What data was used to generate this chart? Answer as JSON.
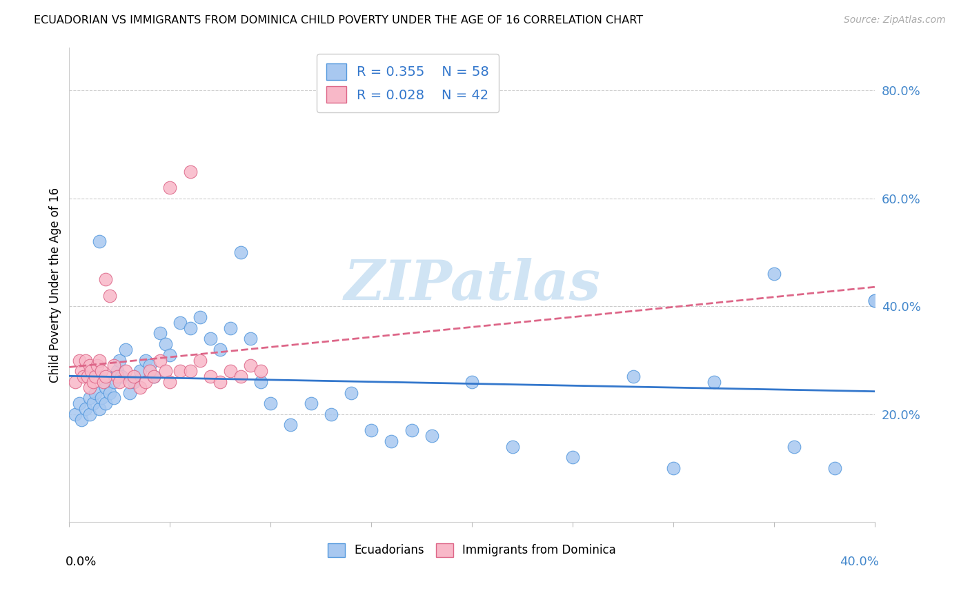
{
  "title": "ECUADORIAN VS IMMIGRANTS FROM DOMINICA CHILD POVERTY UNDER THE AGE OF 16 CORRELATION CHART",
  "source": "Source: ZipAtlas.com",
  "ylabel": "Child Poverty Under the Age of 16",
  "right_yticks": [
    "80.0%",
    "60.0%",
    "40.0%",
    "20.0%"
  ],
  "right_ytick_vals": [
    0.8,
    0.6,
    0.4,
    0.2
  ],
  "xlim": [
    0.0,
    0.4
  ],
  "ylim": [
    0.0,
    0.88
  ],
  "blue_R": "R = 0.355",
  "blue_N": "N = 58",
  "pink_R": "R = 0.028",
  "pink_N": "N = 42",
  "blue_color": "#a8c8f0",
  "pink_color": "#f8b8c8",
  "blue_edge_color": "#5599dd",
  "pink_edge_color": "#dd6688",
  "blue_line_color": "#3377cc",
  "pink_line_color": "#dd6688",
  "legend1_label": "Ecuadorians",
  "legend2_label": "Immigrants from Dominica",
  "watermark": "ZIPatlas",
  "blue_x": [
    0.003,
    0.005,
    0.006,
    0.008,
    0.01,
    0.01,
    0.012,
    0.013,
    0.015,
    0.016,
    0.018,
    0.018,
    0.02,
    0.022,
    0.022,
    0.024,
    0.025,
    0.026,
    0.028,
    0.03,
    0.032,
    0.035,
    0.038,
    0.04,
    0.042,
    0.045,
    0.048,
    0.05,
    0.055,
    0.06,
    0.065,
    0.07,
    0.075,
    0.08,
    0.085,
    0.09,
    0.095,
    0.1,
    0.11,
    0.12,
    0.13,
    0.14,
    0.15,
    0.16,
    0.17,
    0.18,
    0.2,
    0.22,
    0.25,
    0.28,
    0.3,
    0.32,
    0.35,
    0.36,
    0.38,
    0.4,
    0.4,
    0.015
  ],
  "blue_y": [
    0.2,
    0.22,
    0.19,
    0.21,
    0.23,
    0.2,
    0.22,
    0.24,
    0.21,
    0.23,
    0.25,
    0.22,
    0.24,
    0.26,
    0.23,
    0.28,
    0.3,
    0.27,
    0.32,
    0.24,
    0.26,
    0.28,
    0.3,
    0.29,
    0.27,
    0.35,
    0.33,
    0.31,
    0.37,
    0.36,
    0.38,
    0.34,
    0.32,
    0.36,
    0.5,
    0.34,
    0.26,
    0.22,
    0.18,
    0.22,
    0.2,
    0.24,
    0.17,
    0.15,
    0.17,
    0.16,
    0.26,
    0.14,
    0.12,
    0.27,
    0.1,
    0.26,
    0.46,
    0.14,
    0.1,
    0.41,
    0.41,
    0.52
  ],
  "pink_x": [
    0.003,
    0.005,
    0.006,
    0.007,
    0.008,
    0.009,
    0.01,
    0.01,
    0.011,
    0.012,
    0.013,
    0.014,
    0.015,
    0.016,
    0.017,
    0.018,
    0.018,
    0.02,
    0.022,
    0.024,
    0.025,
    0.028,
    0.03,
    0.032,
    0.035,
    0.038,
    0.04,
    0.042,
    0.045,
    0.048,
    0.05,
    0.055,
    0.06,
    0.065,
    0.07,
    0.075,
    0.08,
    0.085,
    0.09,
    0.095,
    0.05,
    0.06
  ],
  "pink_y": [
    0.26,
    0.3,
    0.28,
    0.27,
    0.3,
    0.27,
    0.29,
    0.25,
    0.28,
    0.26,
    0.27,
    0.29,
    0.3,
    0.28,
    0.26,
    0.27,
    0.45,
    0.42,
    0.29,
    0.27,
    0.26,
    0.28,
    0.26,
    0.27,
    0.25,
    0.26,
    0.28,
    0.27,
    0.3,
    0.28,
    0.26,
    0.28,
    0.28,
    0.3,
    0.27,
    0.26,
    0.28,
    0.27,
    0.29,
    0.28,
    0.62,
    0.65
  ]
}
